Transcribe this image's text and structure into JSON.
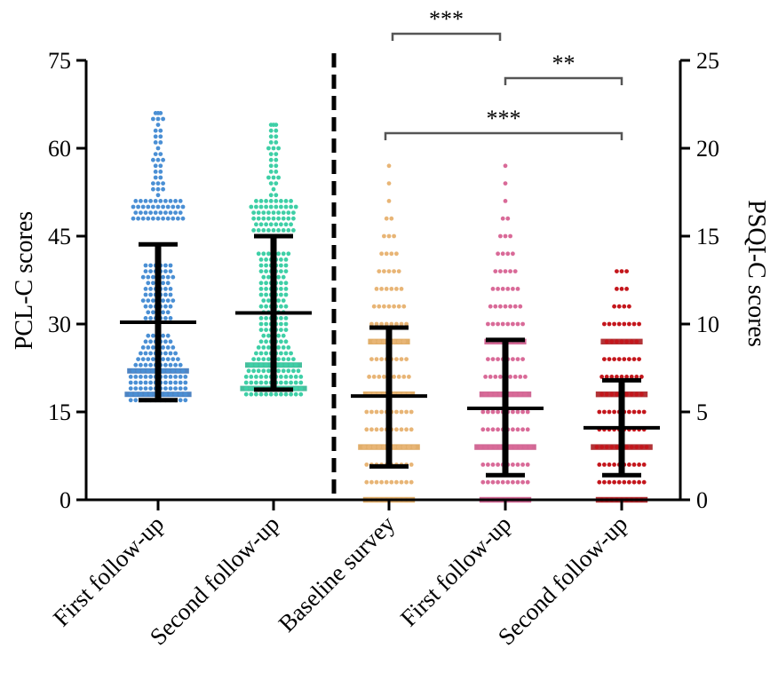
{
  "chart_data": {
    "type": "scatter",
    "left_axis": {
      "label": "PCL-C scores",
      "ticks": [
        0,
        15,
        30,
        45,
        60,
        75
      ],
      "ylim": [
        0,
        75
      ]
    },
    "right_axis": {
      "label": "PSQI-C scores",
      "ticks": [
        0,
        5,
        10,
        15,
        20,
        25
      ],
      "ylim": [
        0,
        25
      ]
    },
    "divider": "dashed vertical line between Second follow-up (PCL-C) and Baseline survey (PSQI-C)",
    "groups": [
      {
        "category": "First follow-up",
        "axis": "left",
        "color": "#4a8fd4",
        "dark": "#2f6eb8",
        "mean": 30.3,
        "sd_low": 17.0,
        "sd_high": 43.6,
        "min": 17,
        "max": 66,
        "dense_low": 17,
        "dense_high": 28,
        "sparse_bands": [
          [
            31,
            40,
            0.35
          ],
          [
            48,
            51,
            0.9
          ],
          [
            52,
            66,
            0.15
          ]
        ]
      },
      {
        "category": "Second follow-up",
        "axis": "left",
        "color": "#3ecfa6",
        "dark": "#24b48c",
        "mean": 31.9,
        "sd_low": 18.8,
        "sd_high": 45.0,
        "min": 18,
        "max": 64,
        "dense_low": 18,
        "dense_high": 28,
        "sparse_bands": [
          [
            29,
            42,
            0.35
          ],
          [
            46,
            51,
            0.8
          ],
          [
            52,
            64,
            0.15
          ]
        ]
      },
      {
        "category": "Baseline survey",
        "axis": "right",
        "color": "#e8b576",
        "dark": "#dca050",
        "mean": 5.9,
        "sd_low": 1.9,
        "sd_high": 9.8,
        "min": 0,
        "max": 19,
        "step": 1
      },
      {
        "category": "First follow-up",
        "axis": "right",
        "color": "#d96a98",
        "dark": "#c94f82",
        "mean": 5.2,
        "sd_low": 1.4,
        "sd_high": 9.1,
        "min": 0,
        "max": 19,
        "step": 1
      },
      {
        "category": "Second follow-up",
        "axis": "right",
        "color": "#c4161c",
        "dark": "#a50f14",
        "mean": 4.1,
        "sd_low": 1.4,
        "sd_high": 6.8,
        "min": 0,
        "max": 13,
        "step": 1
      }
    ],
    "significance": [
      {
        "from": 2,
        "to": 3,
        "label": "***",
        "level": "top"
      },
      {
        "from": 3,
        "to": 4,
        "label": "**",
        "level": "middle"
      },
      {
        "from": 2,
        "to": 4,
        "label": "***",
        "level": "lower"
      }
    ],
    "grid": false,
    "legend": "none"
  }
}
